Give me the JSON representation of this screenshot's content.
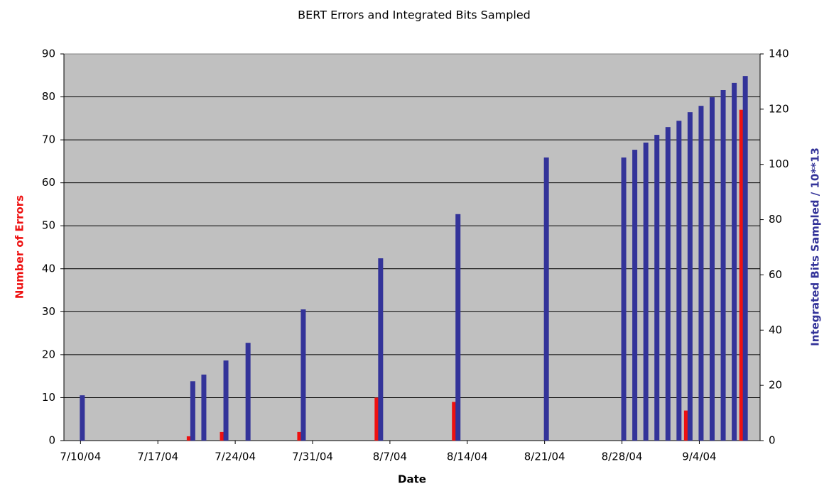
{
  "chart_data": {
    "type": "bar",
    "title": "BERT Errors and Integrated Bits Sampled",
    "x_label": "Date",
    "y_label": "Number of Errors",
    "y2_label": "Integrated Bits Sampled  / 10**13",
    "x": [
      "7/10/04",
      "7/20/04",
      "7/21/04",
      "7/23/04",
      "7/25/04",
      "7/30/04",
      "8/6/04",
      "8/13/04",
      "8/21/04",
      "8/28/04",
      "8/29/04",
      "8/30/04",
      "8/31/04",
      "9/1/04",
      "9/2/04",
      "9/3/04",
      "9/4/04",
      "9/5/04",
      "9/6/04",
      "9/7/04",
      "9/8/04"
    ],
    "series": [
      {
        "name": "Number of Errors",
        "color": "#ee1111",
        "axis": "y",
        "values": [
          0,
          1,
          0,
          2,
          0,
          2,
          10,
          9,
          0,
          0,
          0,
          0,
          0,
          0,
          0,
          7,
          0,
          0,
          0,
          0,
          77
        ]
      },
      {
        "name": "Integrated Bits Sampled",
        "color": "#333399",
        "axis": "y2",
        "values": [
          16.4,
          21.5,
          23.9,
          29,
          35.4,
          47.5,
          66,
          82,
          102.5,
          102.5,
          105.3,
          107.9,
          110.7,
          113.5,
          115.8,
          118.9,
          121.2,
          124.3,
          126.9,
          129.5,
          132
        ]
      }
    ],
    "xlim": [
      "7/9/04",
      "9/9/04"
    ],
    "xticks": [
      "7/10/04",
      "7/17/04",
      "7/24/04",
      "7/31/04",
      "8/7/04",
      "8/14/04",
      "8/21/04",
      "8/28/04",
      "9/4/04"
    ],
    "ylim": [
      0,
      90
    ],
    "yticks": [
      0,
      10,
      20,
      30,
      40,
      50,
      60,
      70,
      80,
      90
    ],
    "y2lim": [
      0,
      140
    ],
    "y2ticks": [
      0,
      20,
      40,
      60,
      80,
      100,
      120,
      140
    ],
    "grid": true
  }
}
